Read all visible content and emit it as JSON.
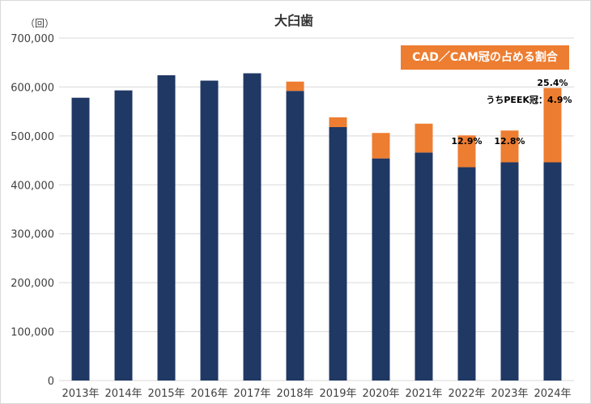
{
  "chart_data": {
    "type": "bar",
    "stacked": true,
    "title": "大臼歯",
    "y_unit_label": "（回）",
    "categories": [
      "2013年",
      "2014年",
      "2015年",
      "2016年",
      "2017年",
      "2018年",
      "2019年",
      "2020年",
      "2021年",
      "2022年",
      "2023年",
      "2024年"
    ],
    "series": [
      {
        "name": "",
        "color": "#203864",
        "values": [
          578000,
          593000,
          624000,
          613000,
          628000,
          592000,
          518000,
          454000,
          466000,
          436000,
          446000,
          446000
        ]
      },
      {
        "name": "",
        "color": "#ed7d31",
        "values": [
          0,
          0,
          0,
          0,
          0,
          19000,
          20000,
          52000,
          59000,
          65000,
          65000,
          152000
        ]
      }
    ],
    "ylim": [
      0,
      700000
    ],
    "yticks": [
      0,
      100000,
      200000,
      300000,
      400000,
      500000,
      600000,
      700000
    ],
    "ytick_labels": [
      "0",
      "100,000",
      "200,000",
      "300,000",
      "400,000",
      "500,000",
      "600,000",
      "700,000"
    ],
    "grid": true,
    "legend_text": "CAD／CAM冠の占める割合",
    "annotations": [
      {
        "category": "2022年",
        "text": "12.9%"
      },
      {
        "category": "2023年",
        "text": "12.8%"
      },
      {
        "category": "2024年",
        "text": "25.4%"
      },
      {
        "category": "2024年",
        "text": "うちPEEK冠：4.9%"
      }
    ]
  }
}
